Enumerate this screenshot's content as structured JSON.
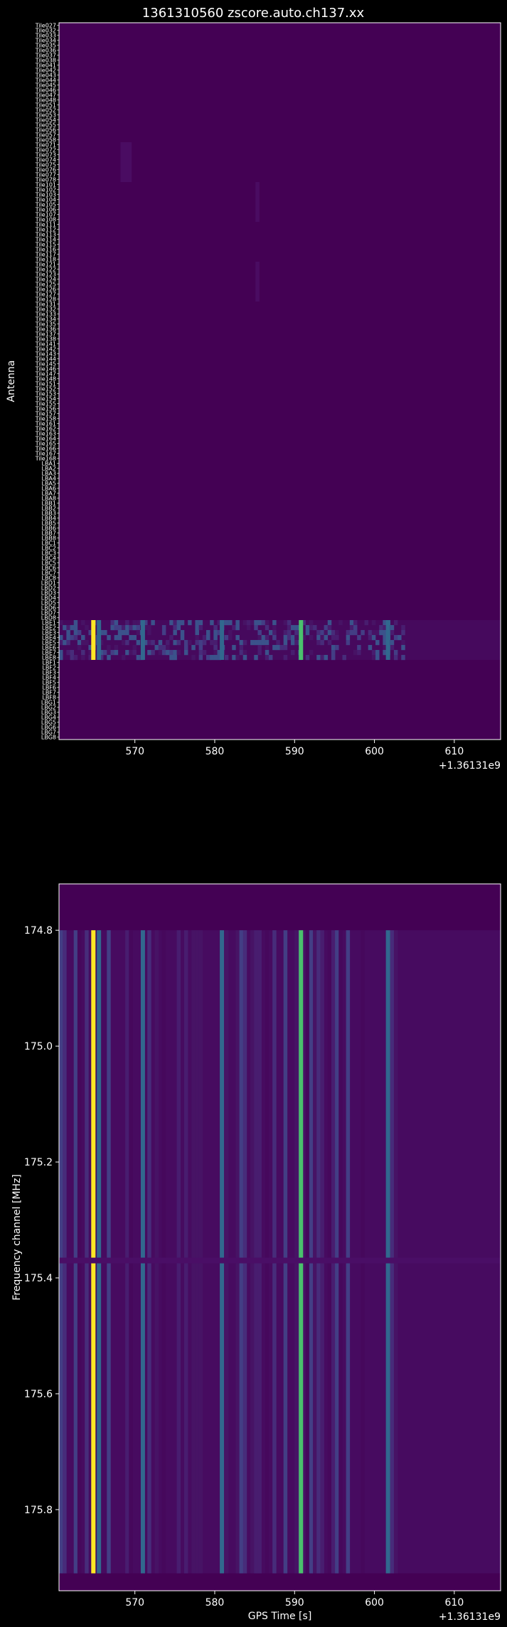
{
  "title": "1361310560 zscore.auto.ch137.xx",
  "background_color": "#000000",
  "colormap": "viridis",
  "chart_data": [
    {
      "type": "heatmap",
      "panel": "top",
      "ylabel": "Antenna",
      "xlabel": "",
      "x_offset_label": "+1.36131e9",
      "x_ticks": [
        570,
        580,
        590,
        600,
        610
      ],
      "x_tick_labels": [
        "570",
        "580",
        "590",
        "600",
        "610"
      ],
      "xlim": [
        560.5,
        615.8
      ],
      "y_tick_labels": [
        "Tile027",
        "Tile032",
        "Tile033",
        "Tile034",
        "Tile035",
        "Tile036",
        "Tile037",
        "Tile038",
        "Tile041",
        "Tile042",
        "Tile043",
        "Tile044",
        "Tile045",
        "Tile046",
        "Tile047",
        "Tile048",
        "Tile051",
        "Tile052",
        "Tile053",
        "Tile054",
        "Tile055",
        "Tile056",
        "Tile057",
        "Tile058",
        "Tile071",
        "Tile072",
        "Tile073",
        "Tile074",
        "Tile075",
        "Tile076",
        "Tile077",
        "Tile078",
        "Tile101",
        "Tile102",
        "Tile103",
        "Tile104",
        "Tile105",
        "Tile106",
        "Tile107",
        "Tile108",
        "Tile111",
        "Tile112",
        "Tile113",
        "Tile114",
        "Tile115",
        "Tile116",
        "Tile117",
        "Tile118",
        "Tile121",
        "Tile122",
        "Tile123",
        "Tile124",
        "Tile125",
        "Tile126",
        "Tile127",
        "Tile128",
        "Tile131",
        "Tile132",
        "Tile133",
        "Tile134",
        "Tile135",
        "Tile136",
        "Tile137",
        "Tile138",
        "Tile141",
        "Tile142",
        "Tile143",
        "Tile144",
        "Tile145",
        "Tile146",
        "Tile147",
        "Tile148",
        "Tile151",
        "Tile152",
        "Tile153",
        "Tile154",
        "Tile155",
        "Tile156",
        "Tile157",
        "Tile158",
        "Tile161",
        "Tile162",
        "Tile163",
        "Tile164",
        "Tile165",
        "Tile166",
        "Tile167",
        "Tile168",
        "LBA1",
        "LBA2",
        "LBA3",
        "LBA4",
        "LBA5",
        "LBA6",
        "LBA7",
        "LBA8",
        "LBB1",
        "LBB2",
        "LBB3",
        "LBB4",
        "LBB5",
        "LBB6",
        "LBB7",
        "LBB8",
        "LBC1",
        "LBC2",
        "LBC3",
        "LBC4",
        "LBC5",
        "LBC6",
        "LBC7",
        "LBC8",
        "LBD1",
        "LBD2",
        "LBD3",
        "LBD4",
        "LBD5",
        "LBD6",
        "LBD7",
        "LBD8",
        "LBE1",
        "LBE2",
        "LBE3",
        "LBE4",
        "LBE5",
        "LBE6",
        "LBE7",
        "LBE8",
        "LBF1",
        "LBF2",
        "LBF3",
        "LBF4",
        "LBF5",
        "LBF6",
        "LBF7",
        "LBF8",
        "LBG1",
        "LBG2",
        "LBG3",
        "LBG4",
        "LBG5",
        "LBG6",
        "LBG7",
        "LBG8"
      ],
      "bright_columns": [
        {
          "x": 564.8,
          "color": "#fde725",
          "label": "yellow"
        },
        {
          "x": 565.5,
          "color": "#31688e"
        },
        {
          "x": 571.0,
          "color": "#31688e"
        },
        {
          "x": 580.9,
          "color": "#31688e"
        },
        {
          "x": 590.8,
          "color": "#4ac16d"
        },
        {
          "x": 601.7,
          "color": "#31688e"
        }
      ],
      "active_rows": [
        "LBE1",
        "LBE2",
        "LBE3",
        "LBE4",
        "LBE5",
        "LBE6",
        "LBE7",
        "LBE8"
      ],
      "faint_patches": [
        {
          "x_range": [
            568.2,
            569.6
          ],
          "rows": [
            "Tile071",
            "Tile078"
          ]
        },
        {
          "x_range": [
            585.1,
            585.6
          ],
          "rows": [
            "Tile101",
            "Tile108"
          ]
        },
        {
          "x_range": [
            585.1,
            585.6
          ],
          "rows": [
            "Tile121",
            "Tile128"
          ]
        }
      ]
    },
    {
      "type": "heatmap",
      "panel": "bottom",
      "ylabel": "Frequency channel [MHz]",
      "xlabel": "GPS Time [s]",
      "x_offset_label": "+1.36131e9",
      "x_ticks": [
        570,
        580,
        590,
        600,
        610
      ],
      "x_tick_labels": [
        "570",
        "580",
        "590",
        "600",
        "610"
      ],
      "xlim": [
        560.5,
        615.8
      ],
      "y_ticks": [
        174.8,
        175.0,
        175.2,
        175.4,
        175.6,
        175.8
      ],
      "y_tick_labels": [
        "174.8",
        "175.0",
        "175.2",
        "175.4",
        "175.6",
        "175.8"
      ],
      "ylim": [
        175.94,
        174.72
      ],
      "data_y_range": [
        174.8,
        175.91
      ],
      "gap_channel": 175.37,
      "bright_columns": [
        {
          "x": 564.8,
          "color": "#fde725"
        },
        {
          "x": 565.5,
          "color": "#31688e"
        },
        {
          "x": 571.0,
          "color": "#31688e"
        },
        {
          "x": 580.9,
          "color": "#31688e"
        },
        {
          "x": 590.8,
          "color": "#4ac16d"
        },
        {
          "x": 601.7,
          "color": "#31688e"
        }
      ]
    }
  ]
}
